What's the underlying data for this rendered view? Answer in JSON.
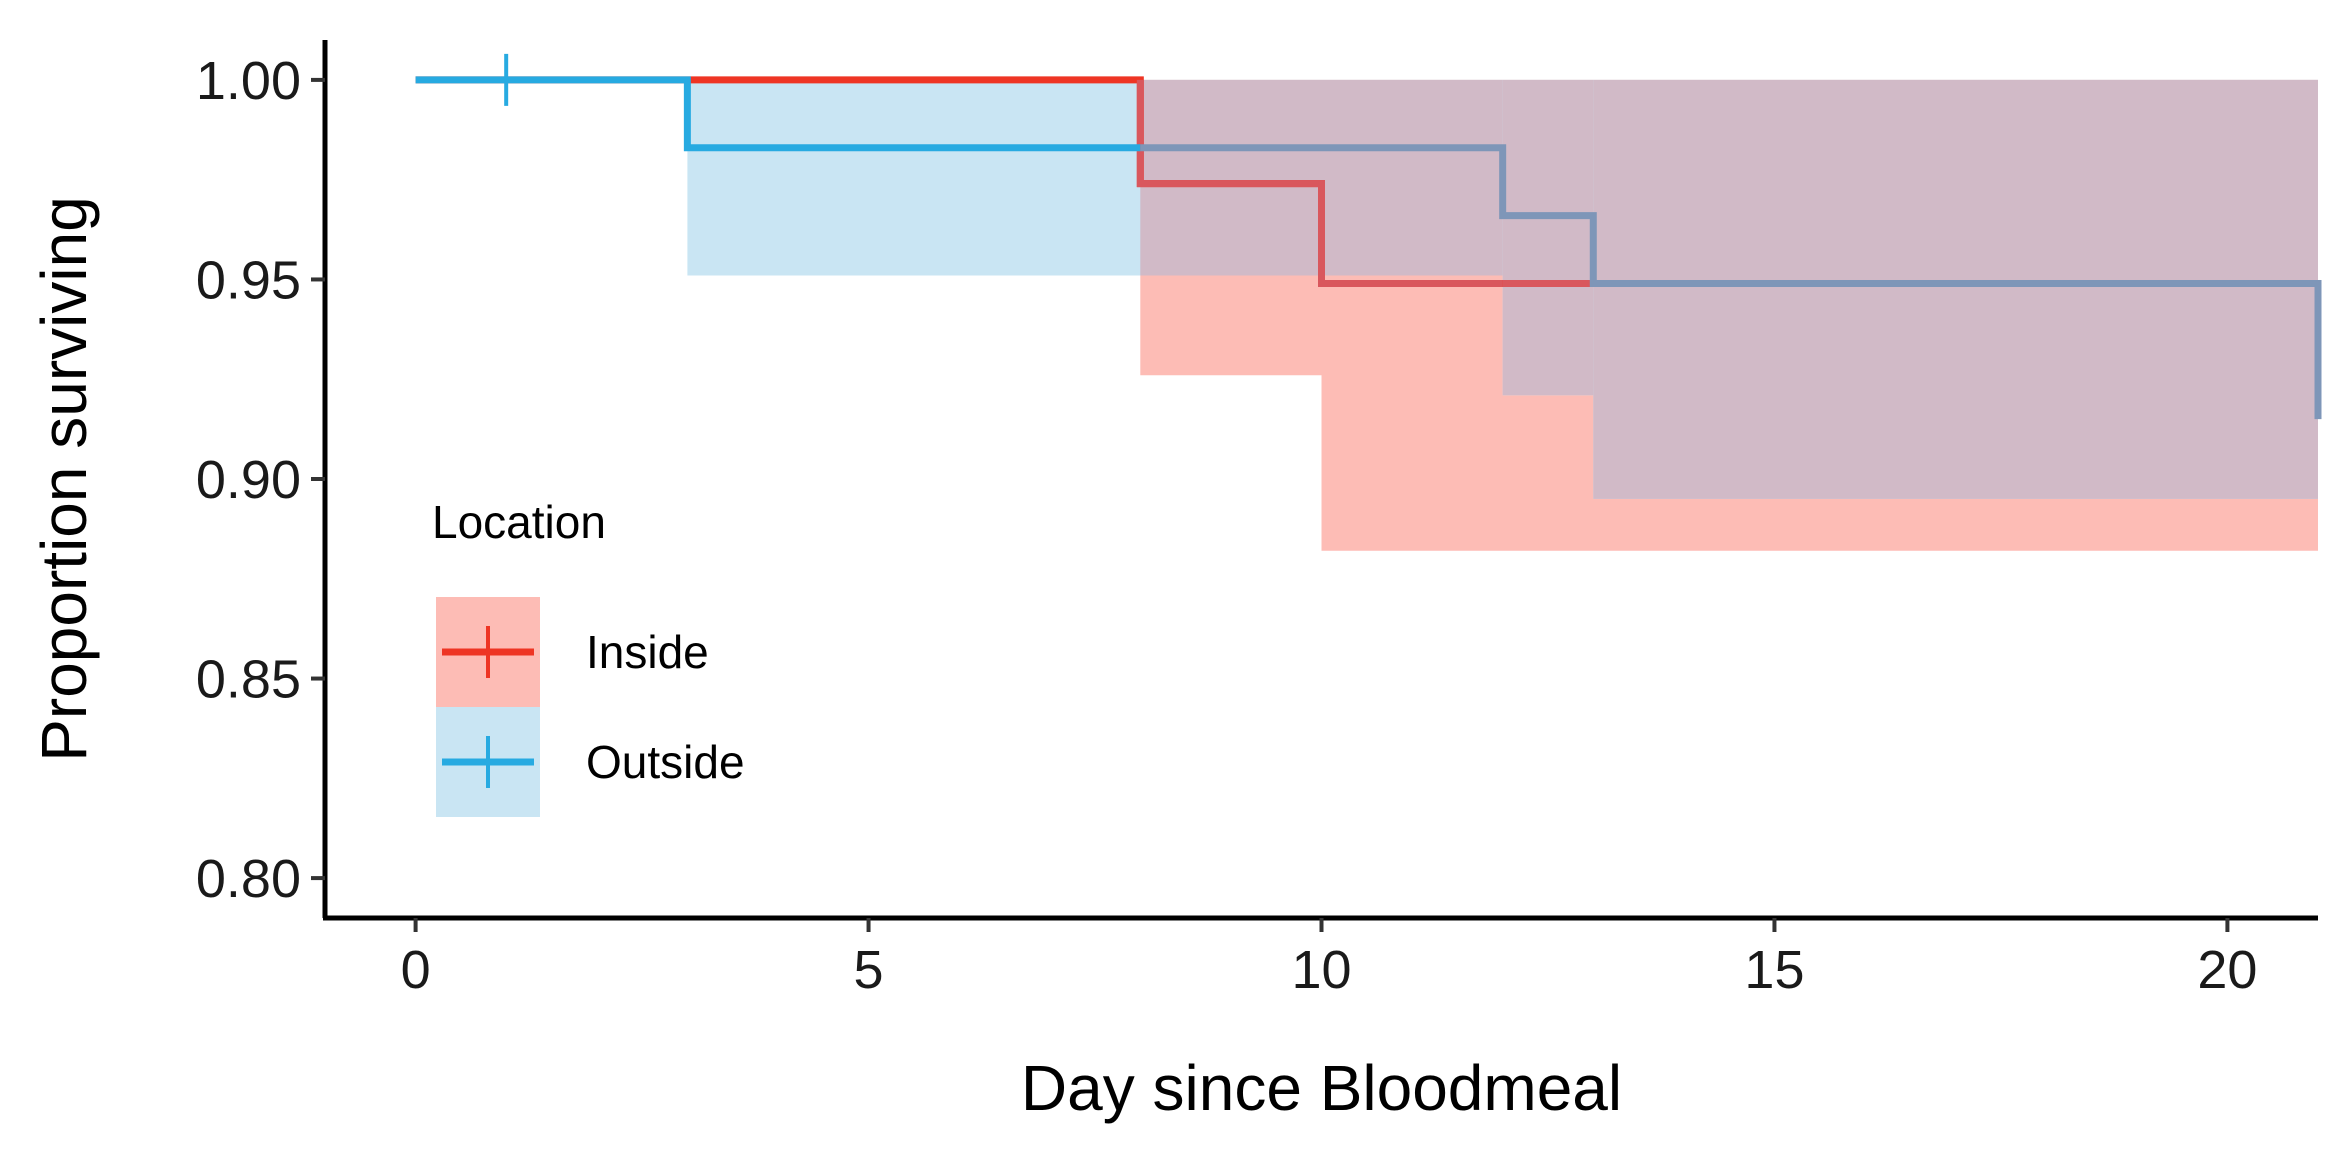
{
  "chart_data": {
    "type": "line",
    "subtype": "kaplan-meier-step",
    "title": "",
    "xlabel": "Day since Bloodmeal",
    "ylabel": "Proportion surviving",
    "xlim": [
      -1,
      21
    ],
    "ylim": [
      0.79,
      1.01
    ],
    "x_ticks": [
      0,
      5,
      10,
      15,
      20
    ],
    "y_ticks": [
      0.8,
      0.85,
      0.9,
      0.95,
      1.0
    ],
    "y_tick_labels": [
      "0.80",
      "0.85",
      "0.90",
      "0.95",
      "1.00"
    ],
    "x_tick_labels": [
      "0",
      "5",
      "10",
      "15",
      "20"
    ],
    "grid": false,
    "legend": {
      "title": "Location",
      "position": "left-bottom-inside",
      "entries": [
        "Inside",
        "Outside"
      ]
    },
    "series": [
      {
        "name": "Inside",
        "color": "#F8766D",
        "line_color": "#EE3524",
        "band_color": "#FDBCB5",
        "steps": [
          [
            0,
            1.0
          ],
          [
            8,
            0.974
          ],
          [
            10,
            0.949
          ],
          [
            21,
            0.949
          ]
        ],
        "ci_lower": [
          [
            0,
            1.0
          ],
          [
            8,
            0.926
          ],
          [
            10,
            0.882
          ],
          [
            21,
            0.882
          ]
        ],
        "ci_upper": [
          [
            0,
            1.0
          ],
          [
            21,
            1.0
          ]
        ],
        "censor": []
      },
      {
        "name": "Outside",
        "color": "#00BFC4",
        "line_color": "#27AAE1",
        "band_color": "#C9E5F3",
        "steps": [
          [
            0,
            1.0
          ],
          [
            3,
            0.983
          ],
          [
            12,
            0.966
          ],
          [
            13,
            0.949
          ],
          [
            21,
            0.915
          ]
        ],
        "ci_lower": [
          [
            0,
            1.0
          ],
          [
            3,
            0.951
          ],
          [
            12,
            0.921
          ],
          [
            13,
            0.895
          ],
          [
            21,
            0.895
          ]
        ],
        "ci_upper": [
          [
            0,
            1.0
          ],
          [
            21,
            1.0
          ]
        ],
        "censor": [
          [
            1,
            1.0
          ]
        ]
      }
    ],
    "overlap_color": "#D1BAC7",
    "overlap_line_color": "#7E96B8",
    "overlap_red_line_color": "#D9575D"
  }
}
